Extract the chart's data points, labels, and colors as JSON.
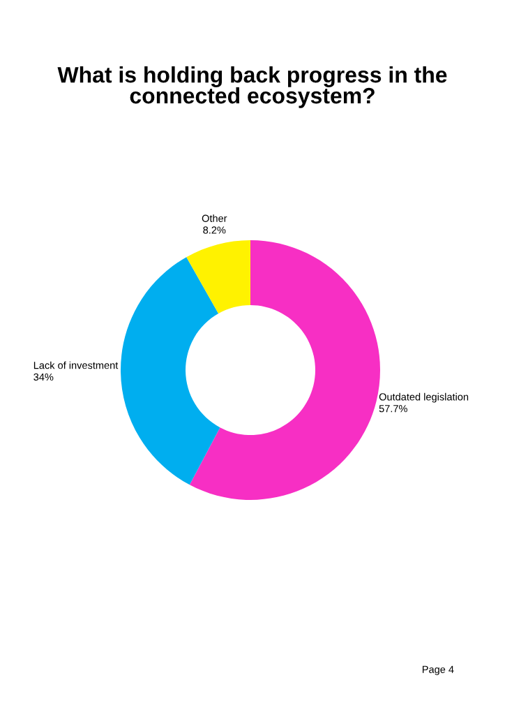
{
  "chart_data": {
    "type": "donut",
    "title": "What is holding back progress in the connected ecosystem?",
    "categories": [
      "Outdated legislation",
      "Lack of investment",
      "Other"
    ],
    "values": [
      57.7,
      34,
      8.2
    ],
    "colors": [
      "#f72fc4",
      "#00aeef",
      "#fff200"
    ],
    "value_labels": [
      "57.7%",
      "34%",
      "8.2%"
    ],
    "legend": false,
    "annotations": [
      "Page 4"
    ]
  }
}
